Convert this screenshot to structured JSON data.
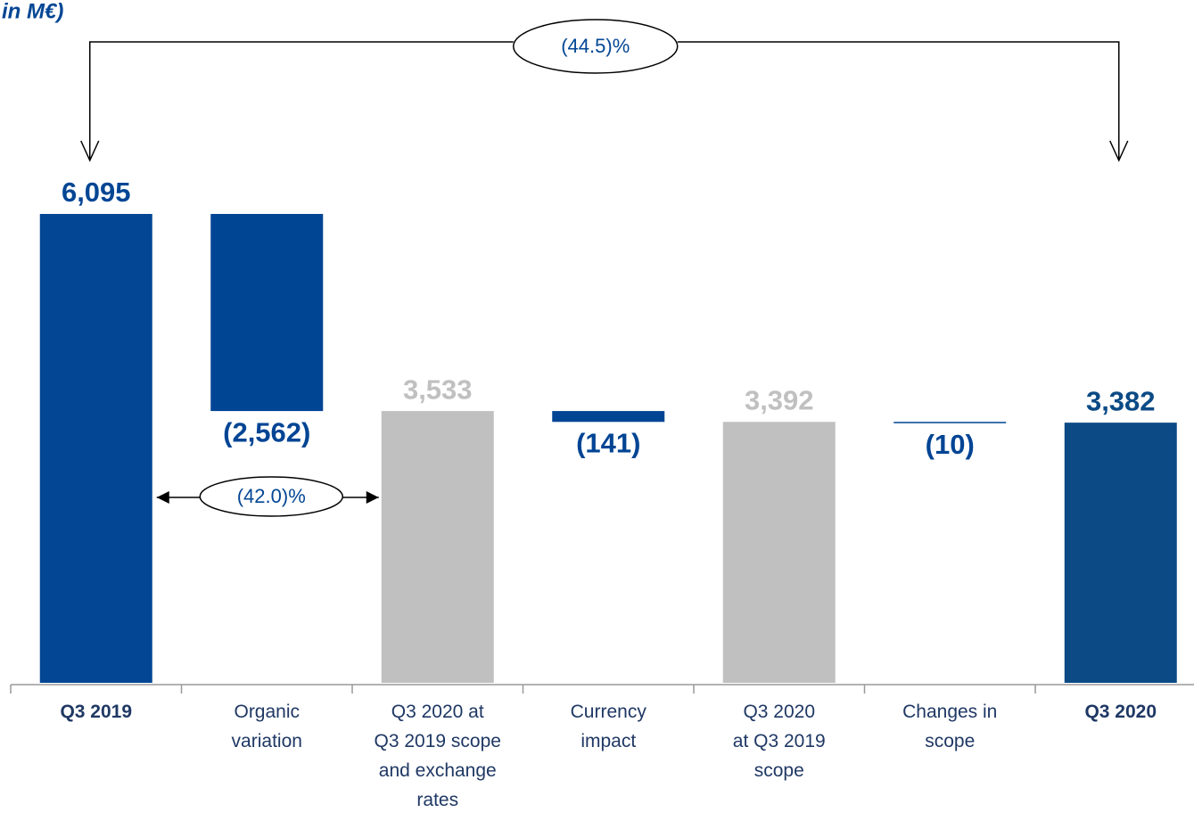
{
  "chart_data": {
    "type": "waterfall",
    "title": "in M€)",
    "categories": [
      "Q3 2019",
      "Organic\nvariation",
      "Q3  2020 at\nQ3 2019 scope\nand exchange\nrates",
      "Currency\nimpact",
      "Q3 2020\nat  Q3 2019\nscope",
      "Changes in\nscope",
      "Q3 2020"
    ],
    "values": [
      6095,
      -2562,
      3533,
      -141,
      3392,
      -10,
      3382
    ],
    "value_labels": [
      "6,095",
      "(2,562)",
      "3,533",
      "(141)",
      "3,392",
      "(10)",
      "3,382"
    ],
    "measure": [
      "absolute",
      "relative",
      "subtotal",
      "relative",
      "subtotal",
      "relative",
      "total"
    ],
    "colors": [
      "#034694",
      "#004494",
      "#c0c0c0",
      "#004494",
      "#c0c0c0",
      "#004494",
      "#0b4a85"
    ],
    "annotations": [
      {
        "text": "(44.5)%",
        "from": 0,
        "to": 6
      },
      {
        "text": "(42.0)%",
        "from": 0,
        "to": 2
      }
    ]
  }
}
